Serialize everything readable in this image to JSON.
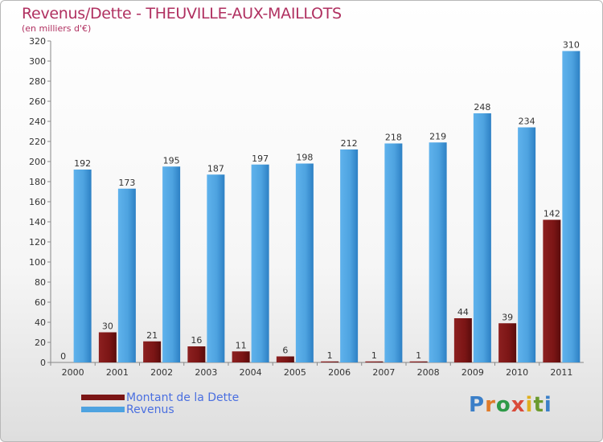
{
  "title": "Revenus/Dette - THEUVILLE-AUX-MAILLOTS",
  "subtitle": "(en milliers d'€)",
  "brand": {
    "letters": [
      "P",
      "r",
      "o",
      "x",
      "i",
      "t",
      "i"
    ],
    "colors": [
      "#3b7fc8",
      "#e07b2a",
      "#2e9a47",
      "#d94b3a",
      "#e0b020",
      "#6a9a2e",
      "#3b7fc8"
    ]
  },
  "colors": {
    "dette": "#7b1515",
    "revenus": "#4ea3e0"
  },
  "chart_data": {
    "type": "bar",
    "categories": [
      "2000",
      "2001",
      "2002",
      "2003",
      "2004",
      "2005",
      "2006",
      "2007",
      "2008",
      "2009",
      "2010",
      "2011"
    ],
    "series": [
      {
        "name": "Montant de la Dette",
        "values": [
          0,
          30,
          21,
          16,
          11,
          6,
          1,
          1,
          1,
          44,
          39,
          142
        ]
      },
      {
        "name": "Revenus",
        "values": [
          192,
          173,
          195,
          187,
          197,
          198,
          212,
          218,
          219,
          248,
          234,
          310
        ]
      }
    ],
    "yticks": [
      0,
      20,
      40,
      60,
      80,
      100,
      120,
      140,
      160,
      180,
      200,
      220,
      240,
      260,
      280,
      300,
      320
    ],
    "ylim": [
      0,
      320
    ],
    "grid": false,
    "legend": "bottom-left"
  }
}
